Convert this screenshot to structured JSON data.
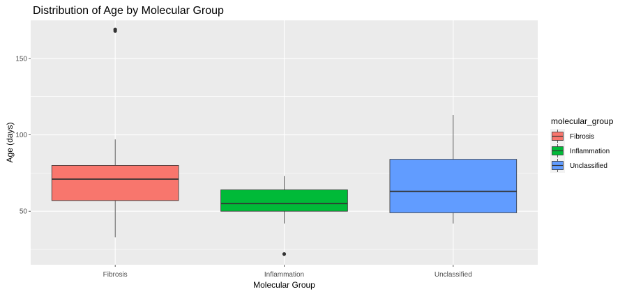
{
  "chart_data": {
    "type": "boxplot",
    "title": "Distribution of Age by Molecular Group",
    "xlabel": "Molecular Group",
    "ylabel": "Age (days)",
    "ylim": [
      15,
      175
    ],
    "yticks": [
      50,
      100,
      150
    ],
    "grid": true,
    "panel_background": "#ebebeb",
    "legend": {
      "title": "molecular_group",
      "position": "right",
      "entries": [
        "Fibrosis",
        "Inflammation",
        "Unclassified"
      ]
    },
    "categories": [
      "Fibrosis",
      "Inflammation",
      "Unclassified"
    ],
    "colors": [
      "#f8766d",
      "#00ba38",
      "#619cff"
    ],
    "boxes": [
      {
        "category": "Fibrosis",
        "whisker_low": 33,
        "q1": 57,
        "median": 71,
        "q3": 80,
        "whisker_high": 97,
        "outliers": [
          168,
          169
        ]
      },
      {
        "category": "Inflammation",
        "whisker_low": 42,
        "q1": 50,
        "median": 55,
        "q3": 64,
        "whisker_high": 73,
        "outliers": [
          22
        ]
      },
      {
        "category": "Unclassified",
        "whisker_low": 42,
        "q1": 49,
        "median": 63,
        "q3": 84,
        "whisker_high": 113,
        "outliers": []
      }
    ]
  }
}
